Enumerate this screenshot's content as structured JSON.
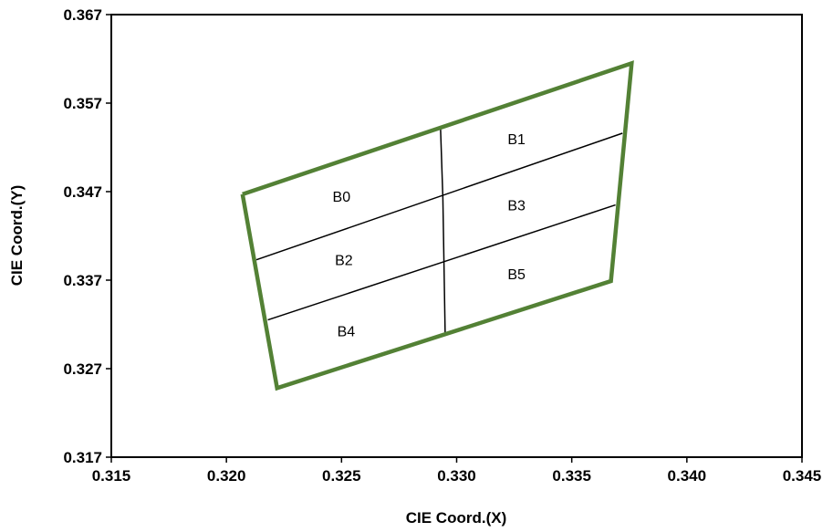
{
  "chart_data": {
    "type": "scatter",
    "title": "",
    "xlabel": "CIE Coord.(X)",
    "ylabel": "CIE Coord.(Y)",
    "xlim": [
      0.315,
      0.345
    ],
    "ylim": [
      0.317,
      0.367
    ],
    "x_ticks": [
      "0.315",
      "0.320",
      "0.325",
      "0.330",
      "0.335",
      "0.340",
      "0.345"
    ],
    "y_ticks": [
      "0.317",
      "0.327",
      "0.337",
      "0.347",
      "0.357",
      "0.367"
    ],
    "x_tick_values": [
      0.315,
      0.32,
      0.325,
      0.33,
      0.335,
      0.34,
      0.345
    ],
    "y_tick_values": [
      0.317,
      0.327,
      0.337,
      0.347,
      0.357,
      0.367
    ],
    "grid": false,
    "outline_color": "#538135",
    "outline": {
      "x": [
        0.3207,
        0.3376,
        0.3367,
        0.3222,
        0.3207
      ],
      "y": [
        0.3467,
        0.3615,
        0.3369,
        0.3248,
        0.3467
      ]
    },
    "divider_color": "#000000",
    "dividers": [
      {
        "x": [
          0.3213,
          0.3372
        ],
        "y": [
          0.3393,
          0.3536
        ]
      },
      {
        "x": [
          0.3218,
          0.3369
        ],
        "y": [
          0.3325,
          0.3455
        ]
      },
      {
        "x": [
          0.3293,
          0.3294,
          0.3295
        ],
        "y": [
          0.3543,
          0.3463,
          0.331
        ]
      }
    ],
    "bins": [
      {
        "label": "B0",
        "x": 0.325,
        "y": 0.3465
      },
      {
        "label": "B1",
        "x": 0.3326,
        "y": 0.353
      },
      {
        "label": "B2",
        "x": 0.3251,
        "y": 0.3393
      },
      {
        "label": "B3",
        "x": 0.3326,
        "y": 0.3455
      },
      {
        "label": "B4",
        "x": 0.3252,
        "y": 0.3313
      },
      {
        "label": "B5",
        "x": 0.3326,
        "y": 0.3377
      }
    ]
  }
}
